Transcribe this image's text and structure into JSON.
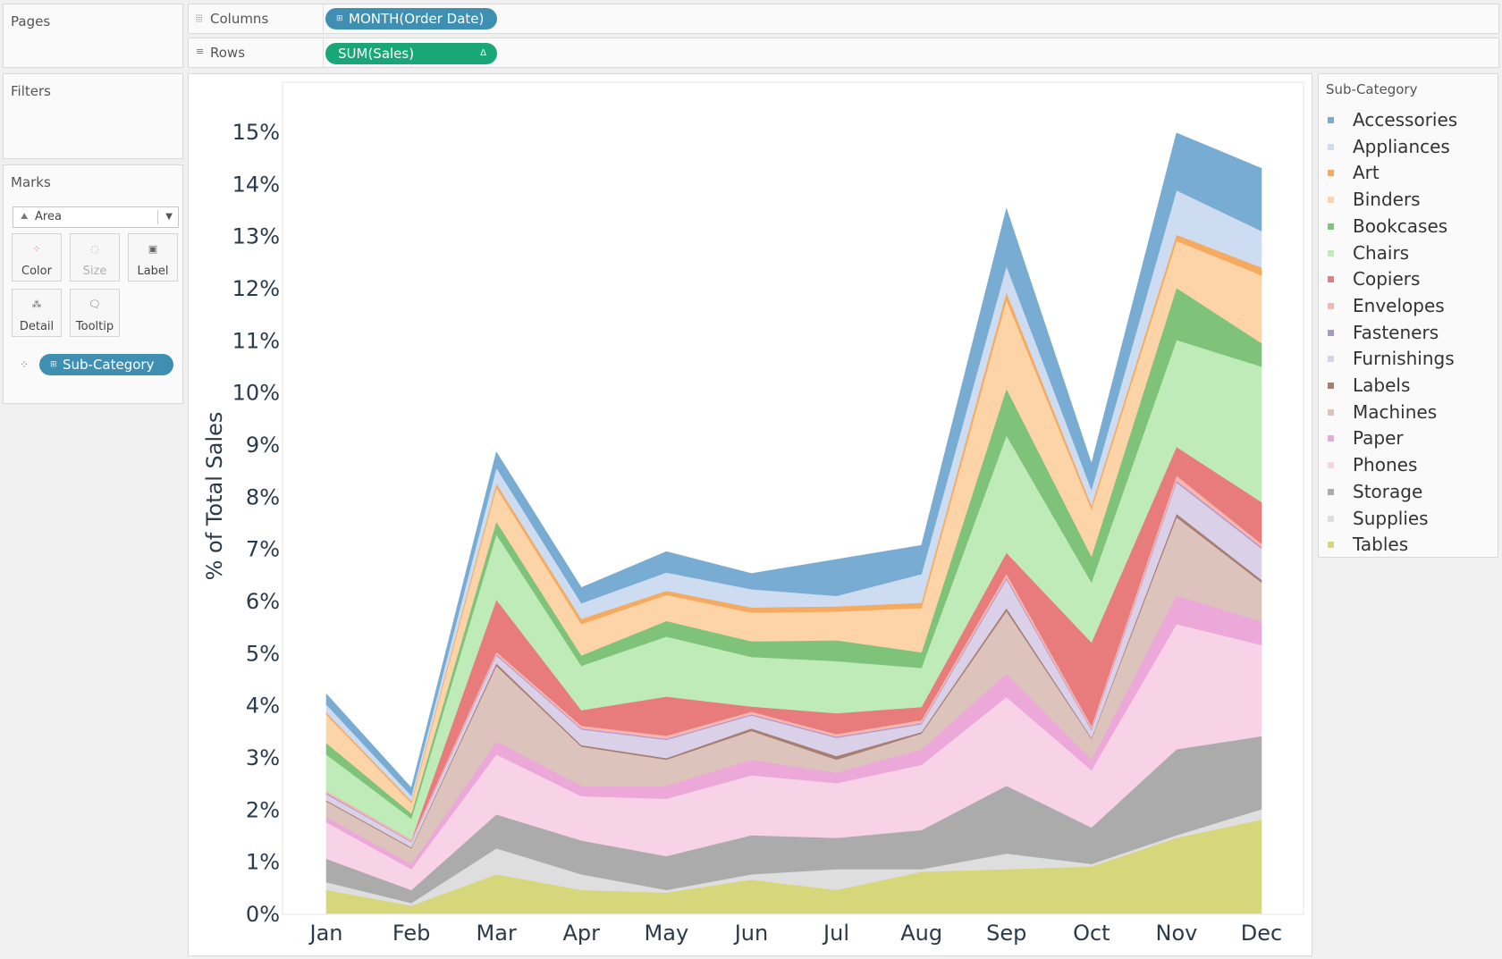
{
  "pages_card": {
    "title": "Pages"
  },
  "columns_shelf": {
    "label": "Columns",
    "icon": "columns-icon",
    "pill": "MONTH(Order Date)"
  },
  "rows_shelf": {
    "label": "Rows",
    "icon": "rows-icon",
    "pill": "SUM(Sales)",
    "pill_badge": "Δ"
  },
  "filters_card": {
    "title": "Filters"
  },
  "marks_card": {
    "title": "Marks",
    "mark_type": "Area",
    "buttons": {
      "color": "Color",
      "size": "Size",
      "label": "Label",
      "detail": "Detail",
      "tooltip": "Tooltip"
    },
    "color_pill": "Sub-Category"
  },
  "legend": {
    "title": "Sub-Category",
    "items": [
      {
        "label": "Accessories",
        "color": "#79acd2"
      },
      {
        "label": "Appliances",
        "color": "#cddcf1"
      },
      {
        "label": "Art",
        "color": "#f6aa5f"
      },
      {
        "label": "Binders",
        "color": "#fdd4a8"
      },
      {
        "label": "Bookcases",
        "color": "#7fc37b"
      },
      {
        "label": "Chairs",
        "color": "#bfebb9"
      },
      {
        "label": "Copiers",
        "color": "#e87b7b"
      },
      {
        "label": "Envelopes",
        "color": "#f9b5b0"
      },
      {
        "label": "Fasteners",
        "color": "#a996cc"
      },
      {
        "label": "Furnishings",
        "color": "#dad0e8"
      },
      {
        "label": "Labels",
        "color": "#a77e73"
      },
      {
        "label": "Machines",
        "color": "#dcc3bb"
      },
      {
        "label": "Paper",
        "color": "#eca8d8"
      },
      {
        "label": "Phones",
        "color": "#f8d2e6"
      },
      {
        "label": "Storage",
        "color": "#ababab"
      },
      {
        "label": "Supplies",
        "color": "#dedede"
      },
      {
        "label": "Tables",
        "color": "#d6d67a"
      }
    ]
  },
  "chart_data": {
    "type": "area",
    "stacked": true,
    "ylabel": "% of Total Sales",
    "xlabel": "",
    "ylim": [
      0,
      16
    ],
    "yticks": [
      0,
      1,
      2,
      3,
      4,
      5,
      6,
      7,
      8,
      9,
      10,
      11,
      12,
      13,
      14,
      15
    ],
    "ytick_labels": [
      "0%",
      "1%",
      "2%",
      "3%",
      "4%",
      "5%",
      "6%",
      "7%",
      "8%",
      "9%",
      "10%",
      "11%",
      "12%",
      "13%",
      "14%",
      "15%"
    ],
    "categories": [
      "Jan",
      "Feb",
      "Mar",
      "Apr",
      "May",
      "Jun",
      "Jul",
      "Aug",
      "Sep",
      "Oct",
      "Nov",
      "Dec"
    ],
    "grid": false,
    "legend_position": "right",
    "series": [
      {
        "name": "Tables",
        "values": [
          0.45,
          0.15,
          0.75,
          0.45,
          0.4,
          0.65,
          0.45,
          0.8,
          0.85,
          0.9,
          1.45,
          1.8
        ]
      },
      {
        "name": "Supplies",
        "values": [
          0.15,
          0.05,
          0.5,
          0.3,
          0.05,
          0.1,
          0.4,
          0.05,
          0.3,
          0.05,
          0.05,
          0.2
        ]
      },
      {
        "name": "Storage",
        "values": [
          0.45,
          0.25,
          0.65,
          0.65,
          0.65,
          0.75,
          0.6,
          0.75,
          1.3,
          0.7,
          1.65,
          1.4
        ]
      },
      {
        "name": "Phones",
        "values": [
          0.7,
          0.4,
          1.15,
          0.85,
          1.1,
          1.15,
          1.05,
          1.25,
          1.7,
          1.1,
          2.4,
          1.75
        ]
      },
      {
        "name": "Paper",
        "values": [
          0.1,
          0.1,
          0.25,
          0.2,
          0.25,
          0.3,
          0.2,
          0.3,
          0.45,
          0.2,
          0.55,
          0.45
        ]
      },
      {
        "name": "Machines",
        "values": [
          0.3,
          0.3,
          1.45,
          0.75,
          0.5,
          0.55,
          0.25,
          0.3,
          1.2,
          0.4,
          1.5,
          0.75
        ]
      },
      {
        "name": "Labels",
        "values": [
          0.02,
          0.02,
          0.05,
          0.03,
          0.03,
          0.05,
          0.07,
          0.03,
          0.06,
          0.02,
          0.07,
          0.05
        ]
      },
      {
        "name": "Furnishings",
        "values": [
          0.12,
          0.1,
          0.15,
          0.3,
          0.35,
          0.25,
          0.35,
          0.15,
          0.55,
          0.15,
          0.6,
          0.6
        ]
      },
      {
        "name": "Fasteners",
        "values": [
          0.02,
          0.01,
          0.02,
          0.02,
          0.02,
          0.02,
          0.02,
          0.02,
          0.03,
          0.02,
          0.03,
          0.03
        ]
      },
      {
        "name": "Envelopes",
        "values": [
          0.04,
          0.04,
          0.05,
          0.05,
          0.06,
          0.05,
          0.05,
          0.06,
          0.08,
          0.06,
          0.1,
          0.06
        ]
      },
      {
        "name": "Copiers",
        "values": [
          0.0,
          0.0,
          1.0,
          0.3,
          0.75,
          0.1,
          0.4,
          0.25,
          0.4,
          1.6,
          0.55,
          0.8
        ]
      },
      {
        "name": "Chairs",
        "values": [
          0.7,
          0.4,
          1.25,
          0.85,
          1.15,
          0.95,
          1.0,
          0.75,
          2.25,
          1.15,
          2.05,
          2.6
        ]
      },
      {
        "name": "Bookcases",
        "values": [
          0.22,
          0.1,
          0.25,
          0.2,
          0.3,
          0.3,
          0.4,
          0.3,
          0.9,
          0.5,
          1.0,
          0.45
        ]
      },
      {
        "name": "Binders",
        "values": [
          0.55,
          0.2,
          0.65,
          0.6,
          0.5,
          0.55,
          0.55,
          0.85,
          1.7,
          0.9,
          0.9,
          1.3
        ]
      },
      {
        "name": "Art",
        "values": [
          0.04,
          0.04,
          0.08,
          0.1,
          0.08,
          0.1,
          0.1,
          0.1,
          0.15,
          0.08,
          0.12,
          0.15
        ]
      },
      {
        "name": "Appliances",
        "values": [
          0.15,
          0.1,
          0.3,
          0.3,
          0.35,
          0.35,
          0.2,
          0.55,
          0.5,
          0.3,
          0.85,
          0.7
        ]
      },
      {
        "name": "Accessories",
        "values": [
          0.2,
          0.15,
          0.3,
          0.3,
          0.4,
          0.3,
          0.7,
          0.55,
          1.1,
          0.5,
          1.1,
          1.2
        ]
      }
    ]
  }
}
